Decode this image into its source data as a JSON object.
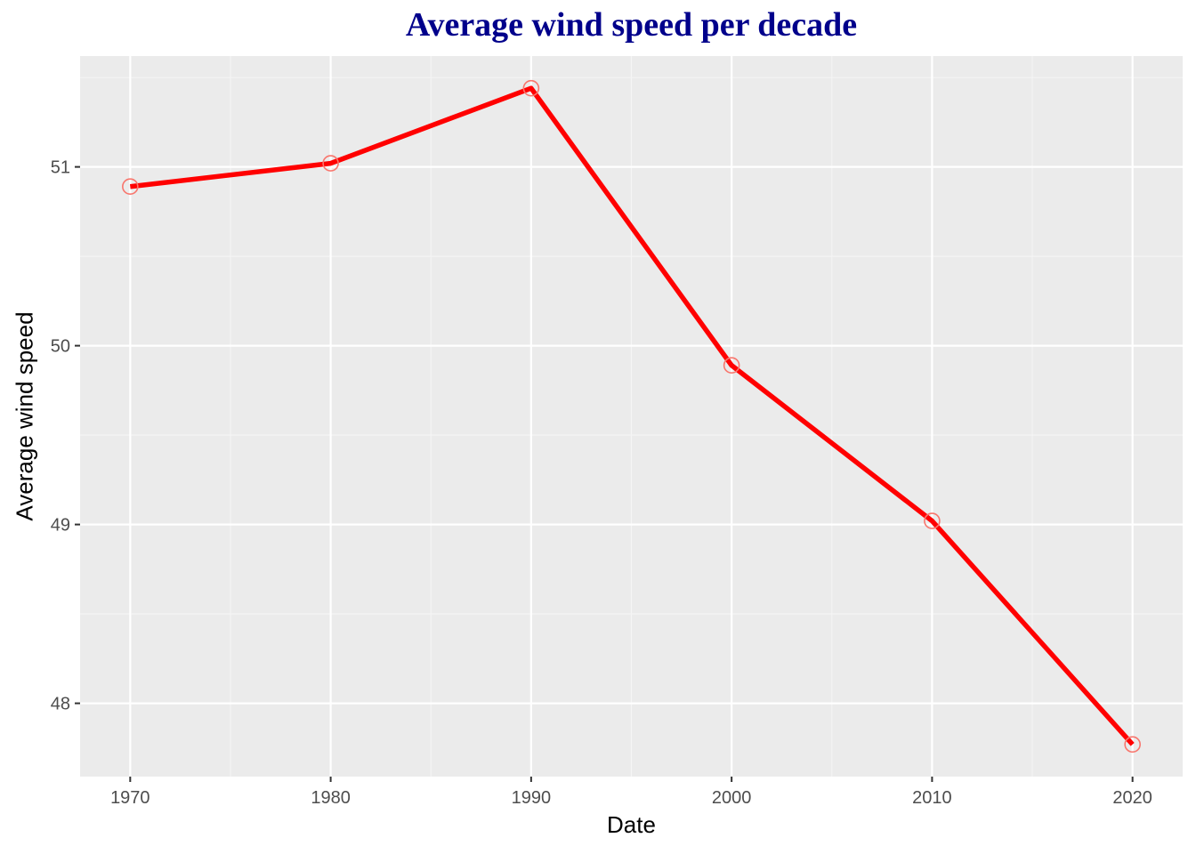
{
  "colors": {
    "title": "#00008B",
    "panel_background": "#EBEBEB",
    "grid_major": "#FFFFFF",
    "grid_minor": "#F5F5F5",
    "line": "#FF0000",
    "points": "#F8766D",
    "tick_text": "#4D4D4D",
    "tick_mark": "#333333"
  },
  "chart_data": {
    "type": "line",
    "title": "Average wind speed per decade",
    "xlabel": "Date",
    "ylabel": "Average wind speed",
    "x": [
      1970,
      1980,
      1990,
      2000,
      2010,
      2020
    ],
    "series": [
      {
        "values": [
          50.89,
          51.02,
          51.44,
          49.89,
          49.02,
          47.77
        ]
      }
    ],
    "xlim": [
      1967.5,
      2022.5
    ],
    "ylim": [
      47.59,
      51.62
    ],
    "x_ticks": [
      "1970",
      "1980",
      "1990",
      "2000",
      "2010",
      "2020"
    ],
    "y_ticks": [
      "48",
      "49",
      "50",
      "51"
    ],
    "grid": true,
    "legend": "none"
  }
}
